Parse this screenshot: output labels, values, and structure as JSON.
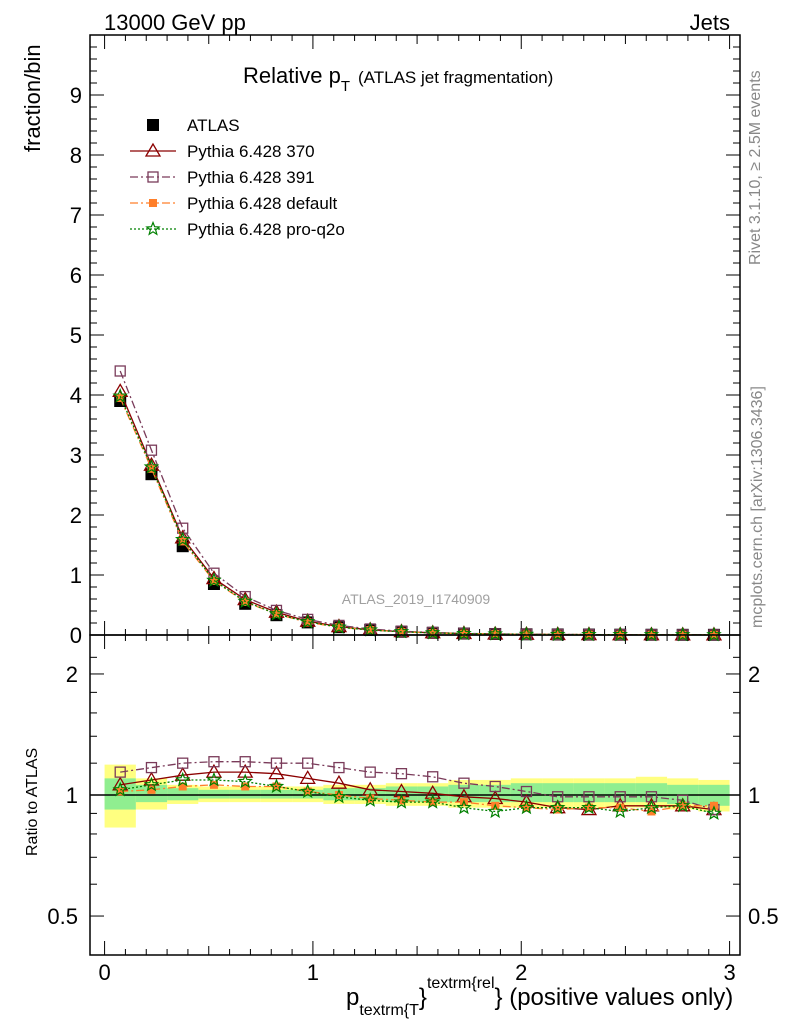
{
  "header": {
    "left": "13000 GeV pp",
    "right": "Jets"
  },
  "side_labels": {
    "top": "Rivet 3.1.10, ≥ 2.5M events",
    "bottom": "mcplots.cern.ch [arXiv:1306.3436]"
  },
  "chart_data": [
    {
      "type": "line",
      "title": "Relative p",
      "title_sub": "T",
      "title_suffix": "(ATLAS jet fragmentation)",
      "ylabel": "fraction/bin",
      "watermark": "ATLAS_2019_I1740909",
      "xlim": [
        -0.07,
        3.05
      ],
      "ylim": [
        0,
        10
      ],
      "yticks": [
        0,
        1,
        2,
        3,
        4,
        5,
        6,
        7,
        8,
        9
      ],
      "grid": false,
      "legend_position": "top-left",
      "x": [
        0.075,
        0.225,
        0.375,
        0.525,
        0.675,
        0.825,
        0.975,
        1.125,
        1.275,
        1.425,
        1.575,
        1.725,
        1.875,
        2.025,
        2.175,
        2.325,
        2.475,
        2.625,
        2.775,
        2.925
      ],
      "series": [
        {
          "name": "ATLAS",
          "color": "#000000",
          "marker": "square-filled",
          "line": "none",
          "values": [
            3.9,
            2.68,
            1.48,
            0.85,
            0.52,
            0.33,
            0.21,
            0.13,
            0.085,
            0.055,
            0.037,
            0.025,
            0.017,
            0.012,
            0.009,
            0.007,
            0.005,
            0.004,
            0.003,
            0.003
          ]
        },
        {
          "name": "Pythia 6.428 370",
          "color": "#8b0000",
          "marker": "triangle-open",
          "line": "solid",
          "values": [
            4.06,
            2.83,
            1.62,
            0.94,
            0.59,
            0.38,
            0.23,
            0.14,
            0.087,
            0.056,
            0.037,
            0.025,
            0.017,
            0.012,
            0.009,
            0.007,
            0.005,
            0.004,
            0.003,
            0.003
          ]
        },
        {
          "name": "Pythia 6.428 391",
          "color": "#7a3b5a",
          "marker": "square-open",
          "line": "dashdot",
          "values": [
            4.4,
            3.08,
            1.78,
            1.03,
            0.64,
            0.41,
            0.26,
            0.16,
            0.1,
            0.064,
            0.042,
            0.028,
            0.019,
            0.013,
            0.009,
            0.007,
            0.005,
            0.004,
            0.003,
            0.003
          ]
        },
        {
          "name": "Pythia 6.428 default",
          "color": "#ff7f2a",
          "marker": "square-filled-small",
          "line": "dashdot",
          "values": [
            3.95,
            2.77,
            1.56,
            0.9,
            0.55,
            0.35,
            0.21,
            0.13,
            0.083,
            0.053,
            0.035,
            0.024,
            0.016,
            0.011,
            0.008,
            0.006,
            0.005,
            0.004,
            0.003,
            0.003
          ]
        },
        {
          "name": "Pythia 6.428 pro-q2o",
          "color": "#008000",
          "marker": "star-open",
          "line": "dotted",
          "values": [
            3.98,
            2.8,
            1.59,
            0.91,
            0.56,
            0.35,
            0.22,
            0.13,
            0.082,
            0.053,
            0.035,
            0.023,
            0.016,
            0.011,
            0.008,
            0.006,
            0.005,
            0.004,
            0.003,
            0.003
          ]
        }
      ]
    },
    {
      "type": "line",
      "ylabel": "Ratio to ATLAS",
      "xlabel": "p",
      "xlabel_sub": "textrm{T",
      "xlabel_sup": "textrm{rel",
      "xlabel_suffix": "} (positive values only)",
      "xlim": [
        -0.07,
        3.05
      ],
      "ylim": [
        0.4,
        2.5
      ],
      "ylog": true,
      "yticks": [
        0.5,
        1,
        2
      ],
      "xticks": [
        0,
        1,
        2,
        3
      ],
      "grid": false,
      "bands": {
        "x_edges": [
          0,
          0.15,
          0.3,
          0.45,
          0.6,
          0.75,
          0.9,
          1.05,
          1.2,
          1.35,
          1.5,
          1.65,
          1.8,
          1.95,
          2.1,
          2.25,
          2.4,
          2.55,
          2.7,
          2.85,
          3.0
        ],
        "inner": {
          "color": "#90ee90",
          "lo": [
            0.92,
            0.96,
            0.97,
            0.98,
            0.98,
            0.98,
            0.98,
            0.97,
            0.97,
            0.96,
            0.96,
            0.96,
            0.96,
            0.96,
            0.96,
            0.96,
            0.96,
            0.96,
            0.95,
            0.94
          ],
          "hi": [
            1.1,
            1.06,
            1.04,
            1.03,
            1.03,
            1.03,
            1.03,
            1.04,
            1.04,
            1.05,
            1.05,
            1.06,
            1.06,
            1.07,
            1.07,
            1.07,
            1.07,
            1.07,
            1.06,
            1.06
          ]
        },
        "outer": {
          "color": "#ffff80",
          "lo": [
            0.83,
            0.92,
            0.95,
            0.96,
            0.96,
            0.96,
            0.96,
            0.95,
            0.95,
            0.94,
            0.94,
            0.93,
            0.93,
            0.93,
            0.93,
            0.93,
            0.93,
            0.93,
            0.92,
            0.91
          ],
          "hi": [
            1.19,
            1.1,
            1.06,
            1.05,
            1.05,
            1.05,
            1.05,
            1.06,
            1.06,
            1.07,
            1.07,
            1.09,
            1.09,
            1.1,
            1.1,
            1.1,
            1.1,
            1.11,
            1.1,
            1.09
          ]
        }
      },
      "x": [
        0.075,
        0.225,
        0.375,
        0.525,
        0.675,
        0.825,
        0.975,
        1.125,
        1.275,
        1.425,
        1.575,
        1.725,
        1.875,
        2.025,
        2.175,
        2.325,
        2.475,
        2.625,
        2.775,
        2.925
      ],
      "series": [
        {
          "name": "Pythia 6.428 370",
          "color": "#8b0000",
          "marker": "triangle-open",
          "line": "solid",
          "values": [
            1.06,
            1.09,
            1.12,
            1.14,
            1.14,
            1.13,
            1.1,
            1.07,
            1.03,
            1.02,
            1.01,
            0.99,
            0.98,
            0.96,
            0.93,
            0.92,
            0.94,
            0.94,
            0.94,
            0.92
          ]
        },
        {
          "name": "Pythia 6.428 391",
          "color": "#7a3b5a",
          "marker": "square-open",
          "line": "dashdot",
          "values": [
            1.14,
            1.17,
            1.2,
            1.21,
            1.21,
            1.2,
            1.2,
            1.17,
            1.14,
            1.13,
            1.11,
            1.07,
            1.05,
            1.02,
            0.99,
            0.99,
            0.99,
            0.99,
            0.97,
            0.92
          ]
        },
        {
          "name": "Pythia 6.428 default",
          "color": "#ff7f2a",
          "marker": "square-filled-small",
          "line": "dashdot",
          "values": [
            1.02,
            1.03,
            1.05,
            1.06,
            1.05,
            1.05,
            1.02,
            1.0,
            0.98,
            0.97,
            0.96,
            0.96,
            0.94,
            0.93,
            0.92,
            0.93,
            0.93,
            0.91,
            0.94,
            0.94
          ]
        },
        {
          "name": "Pythia 6.428 pro-q2o",
          "color": "#008000",
          "marker": "star-open",
          "line": "dotted",
          "values": [
            1.03,
            1.06,
            1.09,
            1.09,
            1.08,
            1.05,
            1.02,
            0.99,
            0.97,
            0.96,
            0.96,
            0.93,
            0.91,
            0.93,
            0.93,
            0.93,
            0.91,
            0.93,
            0.94,
            0.9
          ]
        }
      ]
    }
  ]
}
